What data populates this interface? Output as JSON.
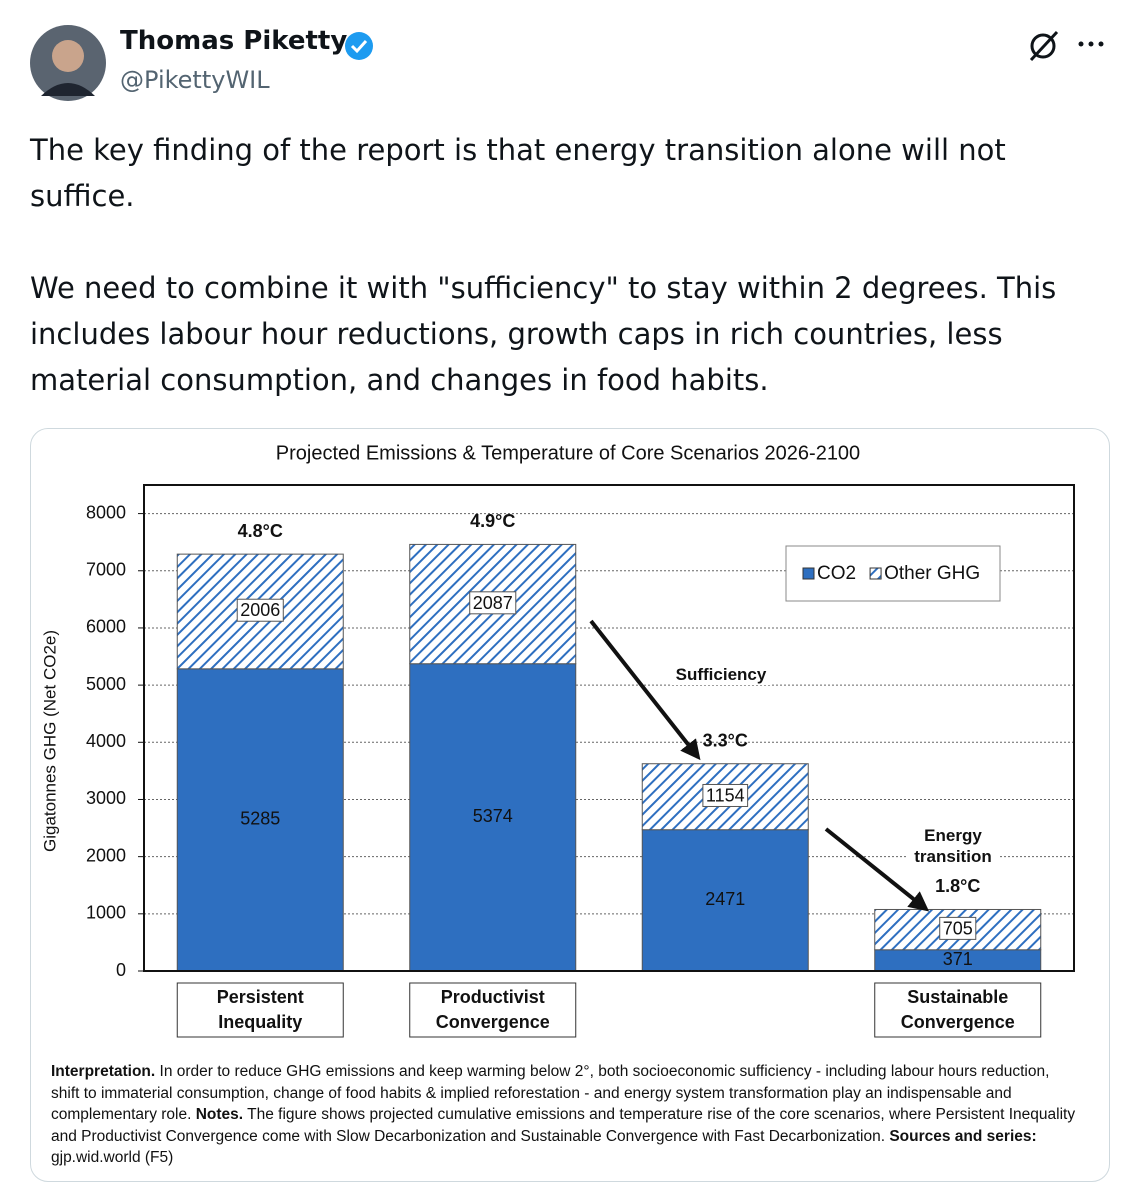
{
  "tweet": {
    "name": "Thomas Piketty",
    "handle": "@PikettyWIL",
    "paragraphs": [
      "The key finding of the report is that energy transition alone will not suffice.",
      "We need to combine it with \"sufficiency\" to stay within 2 degrees. This includes labour hour reductions, growth caps in rich countries, less material consumption, and changes in food habits."
    ]
  },
  "chart_data": {
    "type": "stacked_bar",
    "title": "Projected Emissions & Temperature of Core Scenarios 2026-2100",
    "y_label": "Gigatonnes GHG (Net CO2e)",
    "categories": [
      "Persistent Inequality",
      "Productivist Convergence",
      null,
      "Sustainable Convergence"
    ],
    "series": [
      {
        "name": "CO2",
        "color": "#2e6fc0",
        "hatch": false,
        "values": [
          5285,
          5374,
          2471,
          371
        ]
      },
      {
        "name": "Other GHG",
        "color": "#2e6fc0",
        "hatch": true,
        "values": [
          2006,
          2087,
          1154,
          705
        ]
      }
    ],
    "bar_annotations": [
      "4.8°C",
      "4.9°C",
      "3.3°C",
      "1.8°C"
    ],
    "annotations": [
      "Sufficiency",
      "Energy transition"
    ],
    "ylim": [
      0,
      8500
    ],
    "yticks": [
      0,
      1000,
      2000,
      3000,
      4000,
      5000,
      6000,
      7000,
      8000
    ],
    "grid": true,
    "legend": "upper right",
    "note": [
      {
        "text": "Interpretation.",
        "bold": true
      },
      {
        "text": " In order to reduce GHG emissions and keep warming below 2°, both socioeconomic sufficiency - including labour hours reduction, shift to immaterial consumption, change of food habits & implied reforestation - and energy system transformation play an indispensable and complementary role. ",
        "bold": false
      },
      {
        "text": "Notes.",
        "bold": true
      },
      {
        "text": " The figure shows projected cumulative emissions and temperature rise of the core scenarios, where Persistent Inequality and Productivist Convergence come with Slow Decarbonization and Sustainable Convergence with Fast Decarbonization. ",
        "bold": false
      },
      {
        "text": "Sources and series:",
        "bold": true
      },
      {
        "text": " gjp.wid.world (F5)",
        "bold": false
      }
    ]
  }
}
